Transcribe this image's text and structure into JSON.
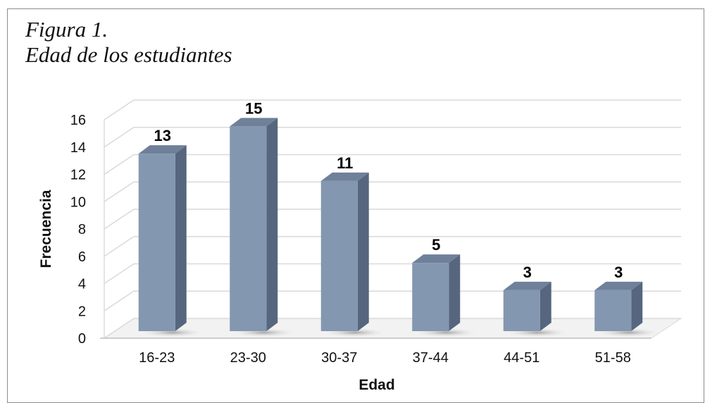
{
  "figure": {
    "title_line1": "Figura 1.",
    "title_line2": "Edad de los estudiantes"
  },
  "chart_data": {
    "type": "bar",
    "categories": [
      "16-23",
      "23-30",
      "30-37",
      "37-44",
      "44-51",
      "51-58"
    ],
    "values": [
      13,
      15,
      11,
      5,
      3,
      3
    ],
    "data_labels": [
      "13",
      "15",
      "11",
      "5",
      "3",
      "3"
    ],
    "xlabel": "Edad",
    "ylabel": "Frecuencia",
    "ylim": [
      0,
      16
    ],
    "yticks": [
      "0",
      "2",
      "4",
      "6",
      "8",
      "10",
      "12",
      "14",
      "16"
    ],
    "grid": true,
    "style": "3d-column",
    "colors": {
      "front": "#8497b0",
      "side": "#56667e",
      "top": "#6f809a",
      "shadow": "#b5b5b5",
      "grid": "#d9d9d9"
    }
  }
}
